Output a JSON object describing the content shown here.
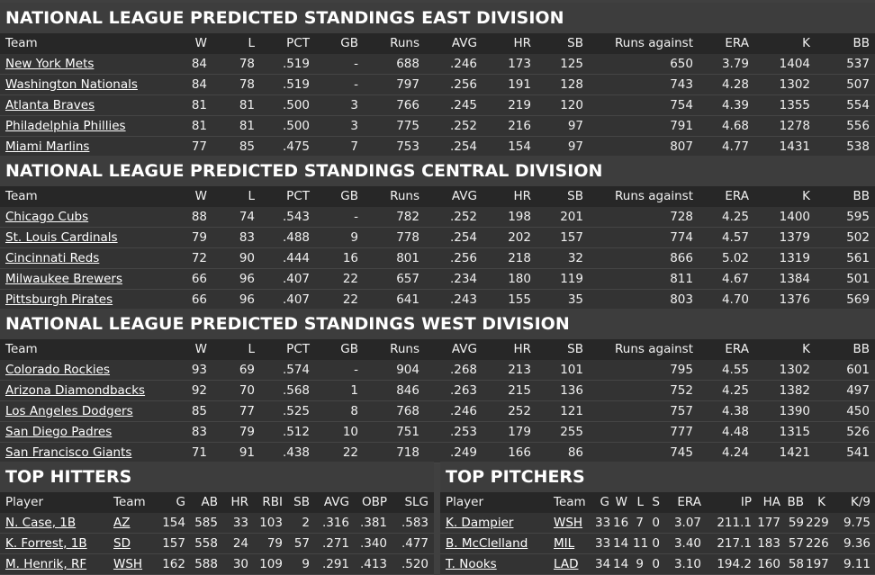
{
  "east": {
    "title": "NATIONAL LEAGUE PREDICTED STANDINGS EAST DIVISION",
    "headers": [
      "Team",
      "W",
      "L",
      "PCT",
      "GB",
      "Runs",
      "AVG",
      "HR",
      "SB",
      "Runs against",
      "ERA",
      "K",
      "BB"
    ],
    "rows": [
      [
        "New York Mets",
        "84",
        "78",
        ".519",
        "-",
        "688",
        ".246",
        "173",
        "125",
        "650",
        "3.79",
        "1404",
        "537"
      ],
      [
        "Washington Nationals",
        "84",
        "78",
        ".519",
        "-",
        "797",
        ".256",
        "191",
        "128",
        "743",
        "4.28",
        "1302",
        "507"
      ],
      [
        "Atlanta Braves",
        "81",
        "81",
        ".500",
        "3",
        "766",
        ".245",
        "219",
        "120",
        "754",
        "4.39",
        "1355",
        "554"
      ],
      [
        "Philadelphia Phillies",
        "81",
        "81",
        ".500",
        "3",
        "775",
        ".252",
        "216",
        "97",
        "791",
        "4.68",
        "1278",
        "556"
      ],
      [
        "Miami Marlins",
        "77",
        "85",
        ".475",
        "7",
        "753",
        ".254",
        "154",
        "97",
        "807",
        "4.77",
        "1431",
        "538"
      ]
    ]
  },
  "central": {
    "title": "NATIONAL LEAGUE PREDICTED STANDINGS CENTRAL DIVISION",
    "headers": [
      "Team",
      "W",
      "L",
      "PCT",
      "GB",
      "Runs",
      "AVG",
      "HR",
      "SB",
      "Runs against",
      "ERA",
      "K",
      "BB"
    ],
    "rows": [
      [
        "Chicago Cubs",
        "88",
        "74",
        ".543",
        "-",
        "782",
        ".252",
        "198",
        "201",
        "728",
        "4.25",
        "1400",
        "595"
      ],
      [
        "St. Louis Cardinals",
        "79",
        "83",
        ".488",
        "9",
        "778",
        ".254",
        "202",
        "157",
        "774",
        "4.57",
        "1379",
        "502"
      ],
      [
        "Cincinnati Reds",
        "72",
        "90",
        ".444",
        "16",
        "801",
        ".256",
        "218",
        "32",
        "866",
        "5.02",
        "1319",
        "561"
      ],
      [
        "Milwaukee Brewers",
        "66",
        "96",
        ".407",
        "22",
        "657",
        ".234",
        "180",
        "119",
        "811",
        "4.67",
        "1384",
        "501"
      ],
      [
        "Pittsburgh Pirates",
        "66",
        "96",
        ".407",
        "22",
        "641",
        ".243",
        "155",
        "35",
        "803",
        "4.70",
        "1376",
        "569"
      ]
    ]
  },
  "west": {
    "title": "NATIONAL LEAGUE PREDICTED STANDINGS WEST DIVISION",
    "headers": [
      "Team",
      "W",
      "L",
      "PCT",
      "GB",
      "Runs",
      "AVG",
      "HR",
      "SB",
      "Runs against",
      "ERA",
      "K",
      "BB"
    ],
    "rows": [
      [
        "Colorado Rockies",
        "93",
        "69",
        ".574",
        "-",
        "904",
        ".268",
        "213",
        "101",
        "795",
        "4.55",
        "1302",
        "601"
      ],
      [
        "Arizona Diamondbacks",
        "92",
        "70",
        ".568",
        "1",
        "846",
        ".263",
        "215",
        "136",
        "752",
        "4.25",
        "1382",
        "497"
      ],
      [
        "Los Angeles Dodgers",
        "85",
        "77",
        ".525",
        "8",
        "768",
        ".246",
        "252",
        "121",
        "757",
        "4.38",
        "1390",
        "450"
      ],
      [
        "San Diego Padres",
        "83",
        "79",
        ".512",
        "10",
        "751",
        ".253",
        "179",
        "255",
        "777",
        "4.48",
        "1315",
        "526"
      ],
      [
        "San Francisco Giants",
        "71",
        "91",
        ".438",
        "22",
        "718",
        ".249",
        "166",
        "86",
        "745",
        "4.24",
        "1421",
        "541"
      ]
    ]
  },
  "hitters": {
    "title": "TOP HITTERS",
    "headers": [
      "Player",
      "Team",
      "G",
      "AB",
      "HR",
      "RBI",
      "SB",
      "AVG",
      "OBP",
      "SLG"
    ],
    "rows": [
      [
        "N. Case, 1B",
        "AZ",
        "154",
        "585",
        "33",
        "103",
        "2",
        ".316",
        ".381",
        ".583"
      ],
      [
        "K. Forrest, 1B",
        "SD",
        "157",
        "558",
        "24",
        "79",
        "57",
        ".271",
        ".340",
        ".477"
      ],
      [
        "M. Henrik, RF",
        "WSH",
        "162",
        "588",
        "30",
        "109",
        "9",
        ".291",
        ".413",
        ".520"
      ]
    ]
  },
  "pitchers": {
    "title": "TOP PITCHERS",
    "headers": [
      "Player",
      "Team",
      "G",
      "W",
      "L",
      "S",
      "ERA",
      "IP",
      "HA",
      "BB",
      "K",
      "K/9"
    ],
    "rows": [
      [
        "K. Dampier",
        "WSH",
        "33",
        "16",
        "7",
        "0",
        "3.07",
        "211.1",
        "177",
        "59",
        "229",
        "9.75"
      ],
      [
        "B. McClelland",
        "MIL",
        "33",
        "14",
        "11",
        "0",
        "3.40",
        "217.1",
        "183",
        "57",
        "226",
        "9.36"
      ],
      [
        "T. Nooks",
        "LAD",
        "34",
        "14",
        "9",
        "0",
        "3.10",
        "194.2",
        "160",
        "58",
        "197",
        "9.11"
      ]
    ]
  }
}
